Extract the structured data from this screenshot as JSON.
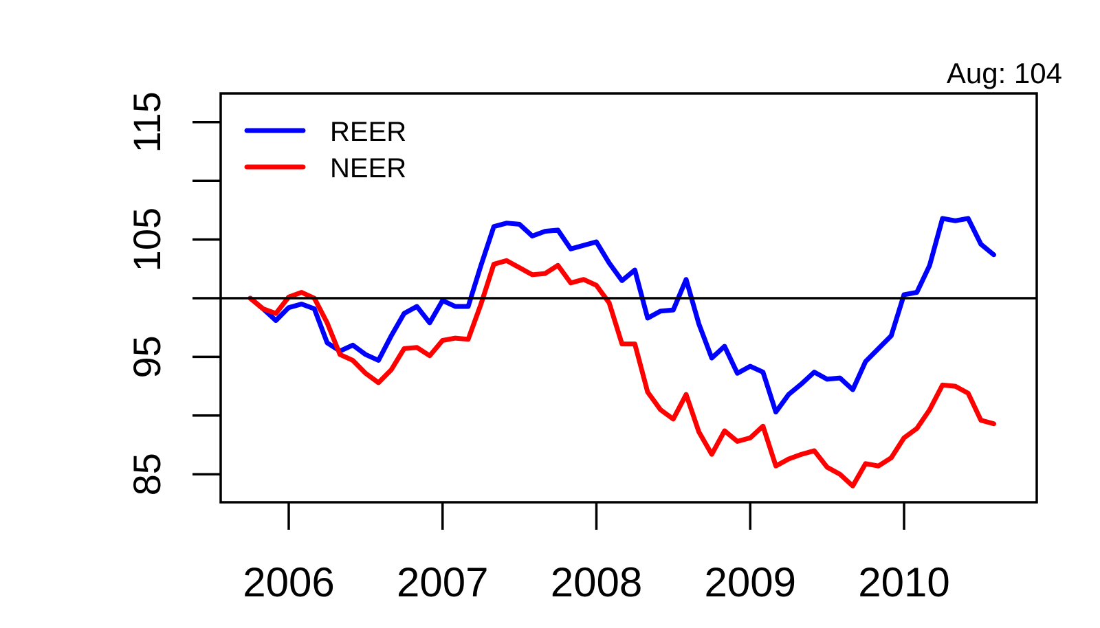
{
  "chart_data": {
    "type": "line",
    "title": "",
    "annotation": "Aug: 104",
    "xlabel": "",
    "ylabel": "",
    "ylim": [
      82.6,
      117.4
    ],
    "yticks": [
      85,
      90,
      95,
      100,
      105,
      110,
      115
    ],
    "ytick_labels": [
      "85",
      "",
      "95",
      "",
      "105",
      "",
      "115"
    ],
    "xticks": [
      "2006",
      "2007",
      "2008",
      "2009",
      "2010"
    ],
    "reference_line": 100,
    "grid": false,
    "legend_position": "top-left",
    "x_start": "2005-10",
    "x_end": "2010-08",
    "x": [
      "Oct 2005",
      "Nov 2005",
      "Dec 2005",
      "Jan 2006",
      "Feb 2006",
      "Mar 2006",
      "Apr 2006",
      "May 2006",
      "Jun 2006",
      "Jul 2006",
      "Aug 2006",
      "Sep 2006",
      "Oct 2006",
      "Nov 2006",
      "Dec 2006",
      "Jan 2007",
      "Feb 2007",
      "Mar 2007",
      "Apr 2007",
      "May 2007",
      "Jun 2007",
      "Jul 2007",
      "Aug 2007",
      "Sep 2007",
      "Oct 2007",
      "Nov 2007",
      "Dec 2007",
      "Jan 2008",
      "Feb 2008",
      "Mar 2008",
      "Apr 2008",
      "May 2008",
      "Jun 2008",
      "Jul 2008",
      "Aug 2008",
      "Sep 2008",
      "Oct 2008",
      "Nov 2008",
      "Dec 2008",
      "Jan 2009",
      "Feb 2009",
      "Mar 2009",
      "Apr 2009",
      "May 2009",
      "Jun 2009",
      "Jul 2009",
      "Aug 2009",
      "Sep 2009",
      "Oct 2009",
      "Nov 2009",
      "Dec 2009",
      "Jan 2010",
      "Feb 2010",
      "Mar 2010",
      "Apr 2010",
      "May 2010",
      "Jun 2010",
      "Jul 2010",
      "Aug 2010"
    ],
    "series": [
      {
        "name": "REER",
        "color": "#0000ff",
        "values": [
          100.0,
          99.1,
          98.1,
          99.2,
          99.5,
          99.1,
          96.2,
          95.5,
          96.0,
          95.2,
          94.7,
          96.8,
          98.7,
          99.3,
          97.9,
          99.8,
          99.3,
          99.3,
          102.8,
          106.1,
          106.4,
          106.3,
          105.3,
          105.7,
          105.8,
          104.2,
          104.5,
          104.8,
          103.0,
          101.5,
          102.4,
          98.3,
          98.9,
          99.0,
          101.6,
          97.8,
          94.9,
          95.9,
          93.6,
          94.2,
          93.7,
          90.3,
          91.8,
          92.7,
          93.7,
          93.1,
          93.2,
          92.2,
          94.6,
          95.7,
          96.8,
          100.3,
          100.5,
          102.8,
          106.8,
          106.6,
          106.8,
          104.6,
          103.7
        ]
      },
      {
        "name": "NEER",
        "color": "#ff0000",
        "values": [
          100.0,
          99.1,
          98.7,
          100.1,
          100.5,
          100.0,
          97.9,
          95.2,
          94.7,
          93.6,
          92.8,
          93.9,
          95.7,
          95.8,
          95.1,
          96.4,
          96.6,
          96.5,
          99.5,
          102.9,
          103.2,
          102.6,
          102.0,
          102.1,
          102.8,
          101.3,
          101.6,
          101.1,
          99.6,
          96.1,
          96.1,
          92.0,
          90.5,
          89.7,
          91.8,
          88.6,
          86.7,
          88.7,
          87.8,
          88.1,
          89.1,
          85.7,
          86.3,
          86.7,
          87.0,
          85.6,
          85.0,
          84.0,
          85.9,
          85.7,
          86.4,
          88.1,
          88.9,
          90.5,
          92.6,
          92.5,
          91.9,
          89.6,
          89.3
        ]
      }
    ]
  },
  "legend": {
    "items": [
      {
        "label": "REER",
        "color": "#0000ff"
      },
      {
        "label": "NEER",
        "color": "#ff0000"
      }
    ]
  }
}
